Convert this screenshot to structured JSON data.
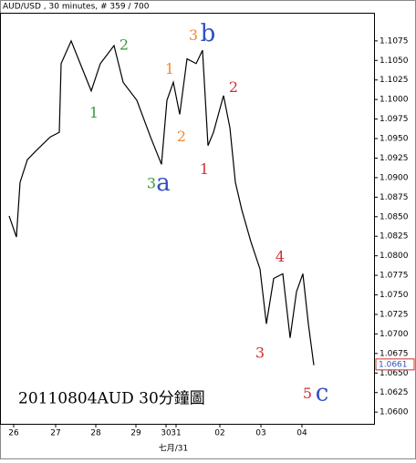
{
  "chart_data": {
    "type": "line",
    "title": "AUD/USD , 30 minutes, # 359 / 700",
    "annotation": "20110804AUD 30分鐘圖",
    "x_sublabel": "七月/31",
    "x": [
      10,
      18,
      22,
      30,
      40,
      55,
      65,
      67,
      78,
      90,
      100,
      110,
      125,
      135,
      150,
      165,
      177,
      183,
      190,
      197,
      205,
      215,
      222,
      228,
      234,
      245,
      252,
      258,
      265,
      275,
      285,
      292,
      300,
      310,
      318,
      325,
      332,
      338,
      344
    ],
    "series": [
      {
        "name": "AUD/USD",
        "color": "#000000",
        "values": [
          1.0851,
          1.0824,
          1.0894,
          1.0923,
          1.0935,
          1.0952,
          1.0958,
          1.1046,
          1.1075,
          1.104,
          1.1011,
          1.1046,
          1.1069,
          1.1022,
          1.0999,
          1.0952,
          1.0917,
          1.0999,
          1.1022,
          1.0981,
          1.1052,
          1.1046,
          1.1063,
          1.0941,
          1.0958,
          1.1005,
          1.0964,
          1.0894,
          1.0859,
          1.0818,
          1.0783,
          1.0713,
          1.0771,
          1.0777,
          1.0695,
          1.0754,
          1.0777,
          1.0713,
          1.066
        ]
      }
    ],
    "last_price": 1.0661,
    "xlim": [
      0,
      410
    ],
    "xticks": [
      {
        "value": 15,
        "label": "26"
      },
      {
        "value": 61,
        "label": "27"
      },
      {
        "value": 105,
        "label": "28"
      },
      {
        "value": 149,
        "label": "29"
      },
      {
        "value": 182,
        "label": "30"
      },
      {
        "value": 193,
        "label": "31"
      },
      {
        "value": 241,
        "label": "02"
      },
      {
        "value": 286,
        "label": "03"
      },
      {
        "value": 331,
        "label": "04"
      }
    ],
    "ylim": [
      1.0585,
      1.1111
    ],
    "yticks": [
      1.1075,
      {
        "value": 1.105,
        "label": "1.1050"
      },
      1.1025,
      {
        "value": 1.1,
        "label": "1.1000"
      },
      1.0975,
      {
        "value": 1.095,
        "label": "1.0950"
      },
      1.0925,
      {
        "value": 1.09,
        "label": "1.0900"
      },
      1.0875,
      {
        "value": 1.085,
        "label": "1.0850"
      },
      1.0825,
      {
        "value": 1.08,
        "label": "1.0800"
      },
      1.0775,
      {
        "value": 1.075,
        "label": "1.0750"
      },
      1.0725,
      {
        "value": 1.07,
        "label": "1.0700"
      },
      1.0675,
      {
        "value": 1.065,
        "label": "1.0650"
      },
      1.0625,
      {
        "value": 1.06,
        "label": "1.0600"
      }
    ],
    "wave_labels": [
      {
        "text": "2",
        "x": 136,
        "y": 1.1069,
        "color": "#3a9a3a"
      },
      {
        "text": "1",
        "x": 103,
        "y": 1.0982,
        "color": "#3a9a3a"
      },
      {
        "text": "3",
        "x": 166,
        "y": 1.0892,
        "color": "#3a9a3a"
      },
      {
        "text": "a",
        "x": 179,
        "y": 1.0892,
        "color": "#3050c0"
      },
      {
        "text": "3",
        "x": 212,
        "y": 1.1081,
        "color": "#f08a30"
      },
      {
        "text": "b",
        "x": 228,
        "y": 1.1083,
        "color": "#3050c0"
      },
      {
        "text": "1",
        "x": 186,
        "y": 1.1038,
        "color": "#f08a30"
      },
      {
        "text": "2",
        "x": 199,
        "y": 1.0952,
        "color": "#f08a30"
      },
      {
        "text": "1",
        "x": 224,
        "y": 1.091,
        "color": "#d03030"
      },
      {
        "text": "2",
        "x": 256,
        "y": 1.1015,
        "color": "#d03030"
      },
      {
        "text": "4",
        "x": 307,
        "y": 1.0798,
        "color": "#d03030"
      },
      {
        "text": "3",
        "x": 285,
        "y": 1.0675,
        "color": "#d03030"
      },
      {
        "text": "5",
        "x": 337,
        "y": 1.0623,
        "color": "#d03030"
      },
      {
        "text": "c",
        "x": 353,
        "y": 1.0623,
        "color": "#3050c0"
      }
    ]
  }
}
